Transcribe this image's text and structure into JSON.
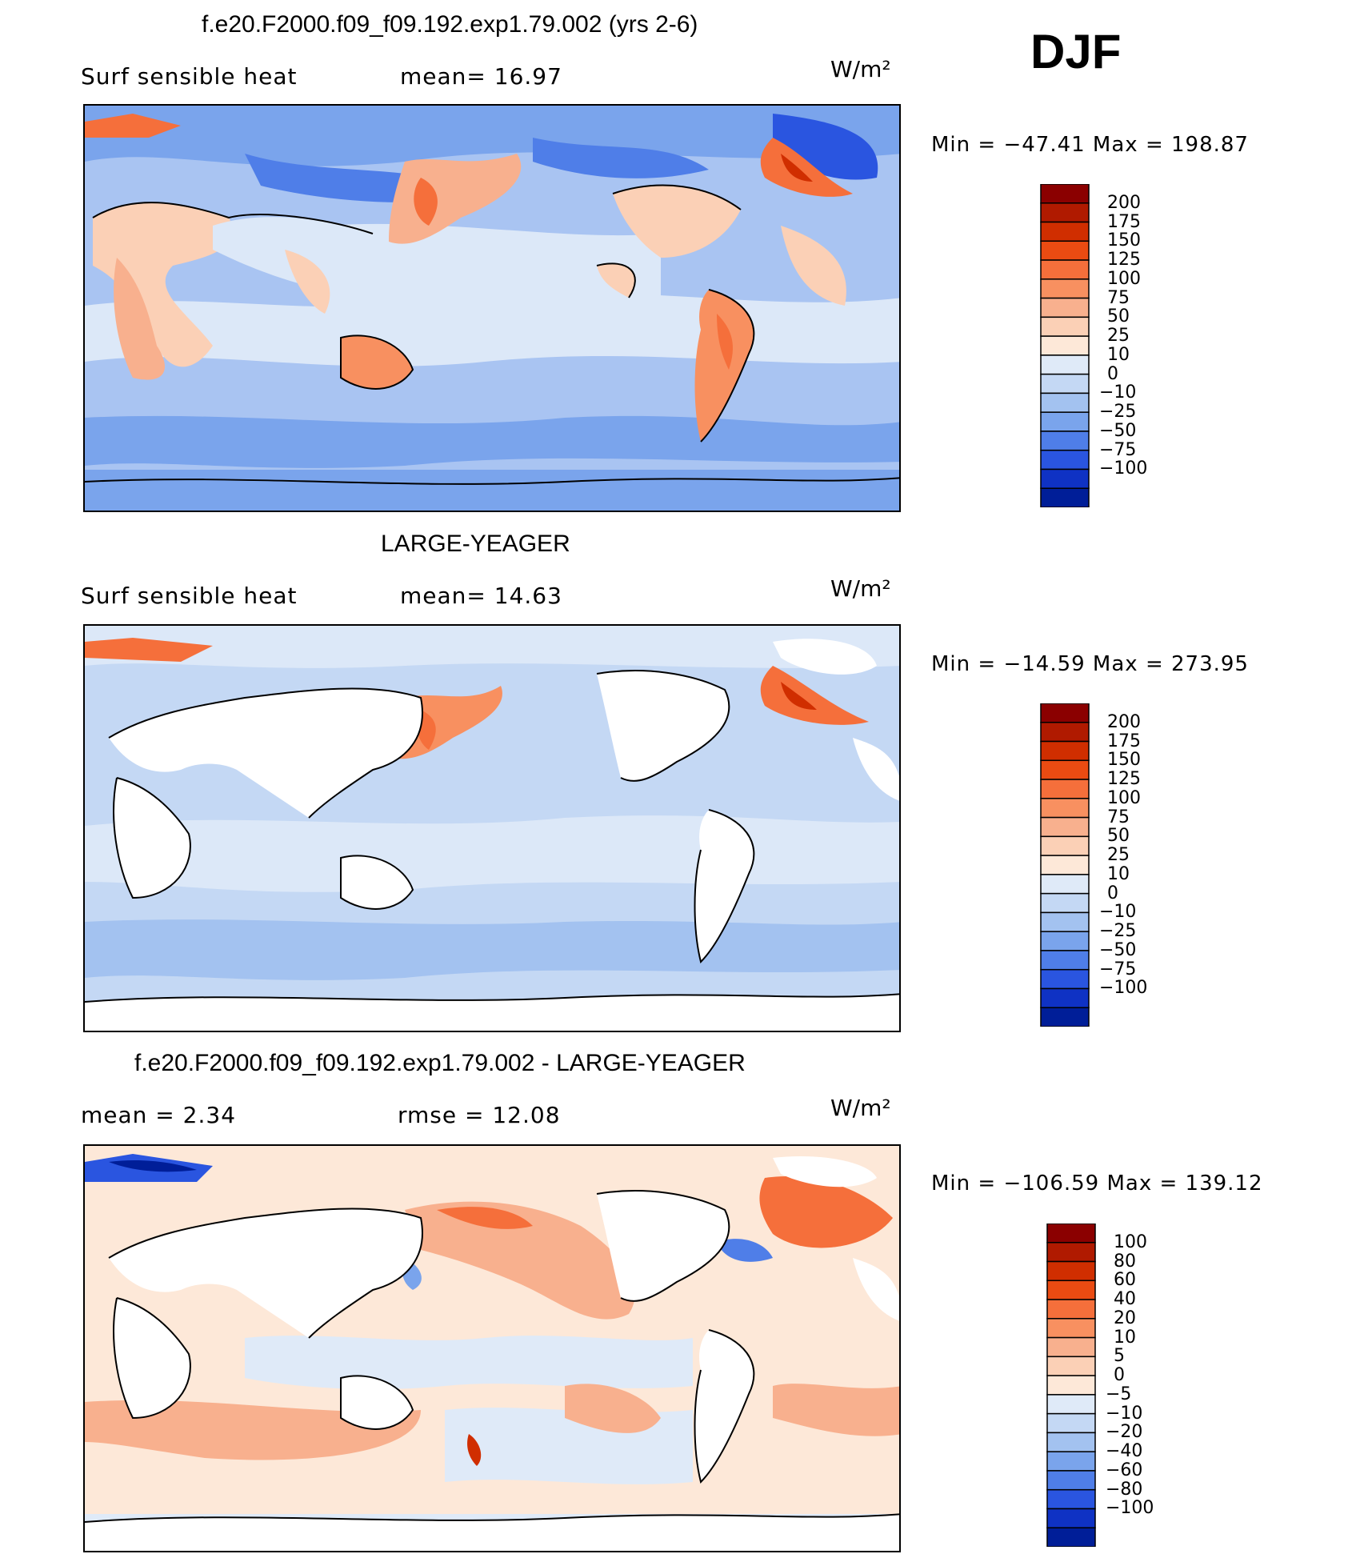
{
  "season": "DJF",
  "panels": [
    {
      "title": "f.e20.F2000.f09_f09.192.exp1.79.002 (yrs 2-6)",
      "left_label": "Surf  sensible  heat",
      "stat": "mean=   16.97",
      "units": "W/m²",
      "minmax": "Min  =  −47.41  Max  =  198.87",
      "colorbar": {
        "levels": [
          "200",
          "175",
          "150",
          "125",
          "100",
          "75",
          "50",
          "25",
          "10",
          "0",
          "−10",
          "−25",
          "−50",
          "−75",
          "−100"
        ],
        "colors": [
          "#8b0000",
          "#b01a00",
          "#d02e00",
          "#ea4b12",
          "#f56f3b",
          "#f89060",
          "#f8b08e",
          "#fbd0b6",
          "#fde8d8",
          "#dfeaf8",
          "#c4d8f4",
          "#a3c2f0",
          "#7aa4ec",
          "#4f7ee8",
          "#2a55e0",
          "#0f32c4",
          "#001e98"
        ]
      }
    },
    {
      "title": "LARGE-YEAGER",
      "left_label": "Surf  sensible  heat",
      "stat": "mean=   14.63",
      "units": "W/m²",
      "minmax": "Min  =  −14.59  Max  =  273.95",
      "colorbar": {
        "levels": [
          "200",
          "175",
          "150",
          "125",
          "100",
          "75",
          "50",
          "25",
          "10",
          "0",
          "−10",
          "−25",
          "−50",
          "−75",
          "−100"
        ],
        "colors": [
          "#8b0000",
          "#b01a00",
          "#d02e00",
          "#ea4b12",
          "#f56f3b",
          "#f89060",
          "#f8b08e",
          "#fbd0b6",
          "#fde8d8",
          "#dfeaf8",
          "#c4d8f4",
          "#a3c2f0",
          "#7aa4ec",
          "#4f7ee8",
          "#2a55e0",
          "#0f32c4",
          "#001e98"
        ]
      }
    },
    {
      "title": "f.e20.F2000.f09_f09.192.exp1.79.002 - LARGE-YEAGER",
      "left_label": "mean  =     2.34",
      "stat": "rmse  =     12.08",
      "units": "W/m²",
      "minmax": "Min  =  −106.59  Max  =  139.12",
      "colorbar": {
        "levels": [
          "100",
          "80",
          "60",
          "40",
          "20",
          "10",
          "5",
          "0",
          "−5",
          "−10",
          "−20",
          "−40",
          "−60",
          "−80",
          "−100"
        ],
        "colors": [
          "#8b0000",
          "#b01a00",
          "#d02e00",
          "#ea4b12",
          "#f56f3b",
          "#f89060",
          "#f8b08e",
          "#fbd0b6",
          "#fde8d8",
          "#dfeaf8",
          "#c4d8f4",
          "#a3c2f0",
          "#7aa4ec",
          "#4f7ee8",
          "#2a55e0",
          "#0f32c4",
          "#001e98"
        ]
      }
    }
  ]
}
